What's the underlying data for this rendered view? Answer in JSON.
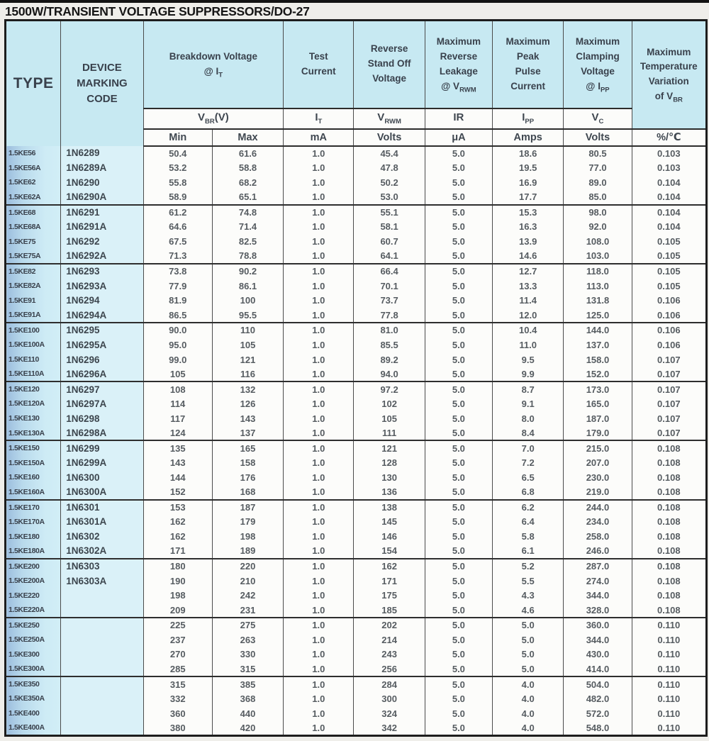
{
  "page": {
    "title": "1500W/TRANSIENT VOLTAGE SUPPRESSORS/DO-27"
  },
  "table": {
    "corner": {
      "type": "TYPE",
      "device": [
        "DEVICE",
        "MARKING",
        "CODE"
      ]
    },
    "group_headers": [
      {
        "lines": [
          "Breakdown Voltage"
        ],
        "at_prefix": "@ I",
        "at_sub": "T"
      },
      {
        "lines": [
          "Test",
          "Current"
        ]
      },
      {
        "lines": [
          "Reverse",
          "Stand Off",
          "Voltage"
        ]
      },
      {
        "lines": [
          "Maximum",
          "Reverse",
          "Leakage"
        ],
        "at_prefix": "@ V",
        "at_sub": "RWM"
      },
      {
        "lines": [
          "Maximum",
          "Peak",
          "Pulse",
          "Current"
        ]
      },
      {
        "lines": [
          "Maximum",
          "Clamping",
          "Voltage"
        ],
        "at_prefix": "@ I",
        "at_sub": "PP"
      },
      {
        "lines": [
          "Maximum",
          "Temperature",
          "Variation"
        ],
        "at_prefix": "of V",
        "at_sub": "BR"
      }
    ],
    "symbols": [
      {
        "base": "V",
        "sub": "BR",
        "suffix": "(V)"
      },
      {
        "base": "I",
        "sub": "T",
        "suffix": ""
      },
      {
        "base": "V",
        "sub": "RWM",
        "suffix": ""
      },
      {
        "base": "IR",
        "sub": "",
        "suffix": ""
      },
      {
        "base": "I",
        "sub": "PP",
        "suffix": ""
      },
      {
        "base": "V",
        "sub": "C",
        "suffix": ""
      }
    ],
    "units": [
      "Min",
      "Max",
      "mA",
      "Volts",
      "μA",
      "Amps",
      "Volts",
      "%/℃"
    ],
    "rows": [
      [
        "1.5KE56",
        "1N6289",
        "50.4",
        "61.6",
        "1.0",
        "45.4",
        "5.0",
        "18.6",
        "80.5",
        "0.103"
      ],
      [
        "1.5KE56A",
        "1N6289A",
        "53.2",
        "58.8",
        "1.0",
        "47.8",
        "5.0",
        "19.5",
        "77.0",
        "0.103"
      ],
      [
        "1.5KE62",
        "1N6290",
        "55.8",
        "68.2",
        "1.0",
        "50.2",
        "5.0",
        "16.9",
        "89.0",
        "0.104"
      ],
      [
        "1.5KE62A",
        "1N6290A",
        "58.9",
        "65.1",
        "1.0",
        "53.0",
        "5.0",
        "17.7",
        "85.0",
        "0.104"
      ],
      [
        "1.5KE68",
        "1N6291",
        "61.2",
        "74.8",
        "1.0",
        "55.1",
        "5.0",
        "15.3",
        "98.0",
        "0.104"
      ],
      [
        "1.5KE68A",
        "1N6291A",
        "64.6",
        "71.4",
        "1.0",
        "58.1",
        "5.0",
        "16.3",
        "92.0",
        "0.104"
      ],
      [
        "1.5KE75",
        "1N6292",
        "67.5",
        "82.5",
        "1.0",
        "60.7",
        "5.0",
        "13.9",
        "108.0",
        "0.105"
      ],
      [
        "1.5KE75A",
        "1N6292A",
        "71.3",
        "78.8",
        "1.0",
        "64.1",
        "5.0",
        "14.6",
        "103.0",
        "0.105"
      ],
      [
        "1.5KE82",
        "1N6293",
        "73.8",
        "90.2",
        "1.0",
        "66.4",
        "5.0",
        "12.7",
        "118.0",
        "0.105"
      ],
      [
        "1.5KE82A",
        "1N6293A",
        "77.9",
        "86.1",
        "1.0",
        "70.1",
        "5.0",
        "13.3",
        "113.0",
        "0.105"
      ],
      [
        "1.5KE91",
        "1N6294",
        "81.9",
        "100",
        "1.0",
        "73.7",
        "5.0",
        "11.4",
        "131.8",
        "0.106"
      ],
      [
        "1.5KE91A",
        "1N6294A",
        "86.5",
        "95.5",
        "1.0",
        "77.8",
        "5.0",
        "12.0",
        "125.0",
        "0.106"
      ],
      [
        "1.5KE100",
        "1N6295",
        "90.0",
        "110",
        "1.0",
        "81.0",
        "5.0",
        "10.4",
        "144.0",
        "0.106"
      ],
      [
        "1.5KE100A",
        "1N6295A",
        "95.0",
        "105",
        "1.0",
        "85.5",
        "5.0",
        "11.0",
        "137.0",
        "0.106"
      ],
      [
        "1.5KE110",
        "1N6296",
        "99.0",
        "121",
        "1.0",
        "89.2",
        "5.0",
        "9.5",
        "158.0",
        "0.107"
      ],
      [
        "1.5KE110A",
        "1N6296A",
        "105",
        "116",
        "1.0",
        "94.0",
        "5.0",
        "9.9",
        "152.0",
        "0.107"
      ],
      [
        "1.5KE120",
        "1N6297",
        "108",
        "132",
        "1.0",
        "97.2",
        "5.0",
        "8.7",
        "173.0",
        "0.107"
      ],
      [
        "1.5KE120A",
        "1N6297A",
        "114",
        "126",
        "1.0",
        "102",
        "5.0",
        "9.1",
        "165.0",
        "0.107"
      ],
      [
        "1.5KE130",
        "1N6298",
        "117",
        "143",
        "1.0",
        "105",
        "5.0",
        "8.0",
        "187.0",
        "0.107"
      ],
      [
        "1.5KE130A",
        "1N6298A",
        "124",
        "137",
        "1.0",
        "111",
        "5.0",
        "8.4",
        "179.0",
        "0.107"
      ],
      [
        "1.5KE150",
        "1N6299",
        "135",
        "165",
        "1.0",
        "121",
        "5.0",
        "7.0",
        "215.0",
        "0.108"
      ],
      [
        "1.5KE150A",
        "1N6299A",
        "143",
        "158",
        "1.0",
        "128",
        "5.0",
        "7.2",
        "207.0",
        "0.108"
      ],
      [
        "1.5KE160",
        "1N6300",
        "144",
        "176",
        "1.0",
        "130",
        "5.0",
        "6.5",
        "230.0",
        "0.108"
      ],
      [
        "1.5KE160A",
        "1N6300A",
        "152",
        "168",
        "1.0",
        "136",
        "5.0",
        "6.8",
        "219.0",
        "0.108"
      ],
      [
        "1.5KE170",
        "1N6301",
        "153",
        "187",
        "1.0",
        "138",
        "5.0",
        "6.2",
        "244.0",
        "0.108"
      ],
      [
        "1.5KE170A",
        "1N6301A",
        "162",
        "179",
        "1.0",
        "145",
        "5.0",
        "6.4",
        "234.0",
        "0.108"
      ],
      [
        "1.5KE180",
        "1N6302",
        "162",
        "198",
        "1.0",
        "146",
        "5.0",
        "5.8",
        "258.0",
        "0.108"
      ],
      [
        "1.5KE180A",
        "1N6302A",
        "171",
        "189",
        "1.0",
        "154",
        "5.0",
        "6.1",
        "246.0",
        "0.108"
      ],
      [
        "1.5KE200",
        "1N6303",
        "180",
        "220",
        "1.0",
        "162",
        "5.0",
        "5.2",
        "287.0",
        "0.108"
      ],
      [
        "1.5KE200A",
        "1N6303A",
        "190",
        "210",
        "1.0",
        "171",
        "5.0",
        "5.5",
        "274.0",
        "0.108"
      ],
      [
        "1.5KE220",
        "",
        "198",
        "242",
        "1.0",
        "175",
        "5.0",
        "4.3",
        "344.0",
        "0.108"
      ],
      [
        "1.5KE220A",
        "",
        "209",
        "231",
        "1.0",
        "185",
        "5.0",
        "4.6",
        "328.0",
        "0.108"
      ],
      [
        "1.5KE250",
        "",
        "225",
        "275",
        "1.0",
        "202",
        "5.0",
        "5.0",
        "360.0",
        "0.110"
      ],
      [
        "1.5KE250A",
        "",
        "237",
        "263",
        "1.0",
        "214",
        "5.0",
        "5.0",
        "344.0",
        "0.110"
      ],
      [
        "1.5KE300",
        "",
        "270",
        "330",
        "1.0",
        "243",
        "5.0",
        "5.0",
        "430.0",
        "0.110"
      ],
      [
        "1.5KE300A",
        "",
        "285",
        "315",
        "1.0",
        "256",
        "5.0",
        "5.0",
        "414.0",
        "0.110"
      ],
      [
        "1.5KE350",
        "",
        "315",
        "385",
        "1.0",
        "284",
        "5.0",
        "4.0",
        "504.0",
        "0.110"
      ],
      [
        "1.5KE350A",
        "",
        "332",
        "368",
        "1.0",
        "300",
        "5.0",
        "4.0",
        "482.0",
        "0.110"
      ],
      [
        "1.5KE400",
        "",
        "360",
        "440",
        "1.0",
        "324",
        "5.0",
        "4.0",
        "572.0",
        "0.110"
      ],
      [
        "1.5KE400A",
        "",
        "380",
        "420",
        "1.0",
        "342",
        "5.0",
        "4.0",
        "548.0",
        "0.110"
      ]
    ]
  }
}
